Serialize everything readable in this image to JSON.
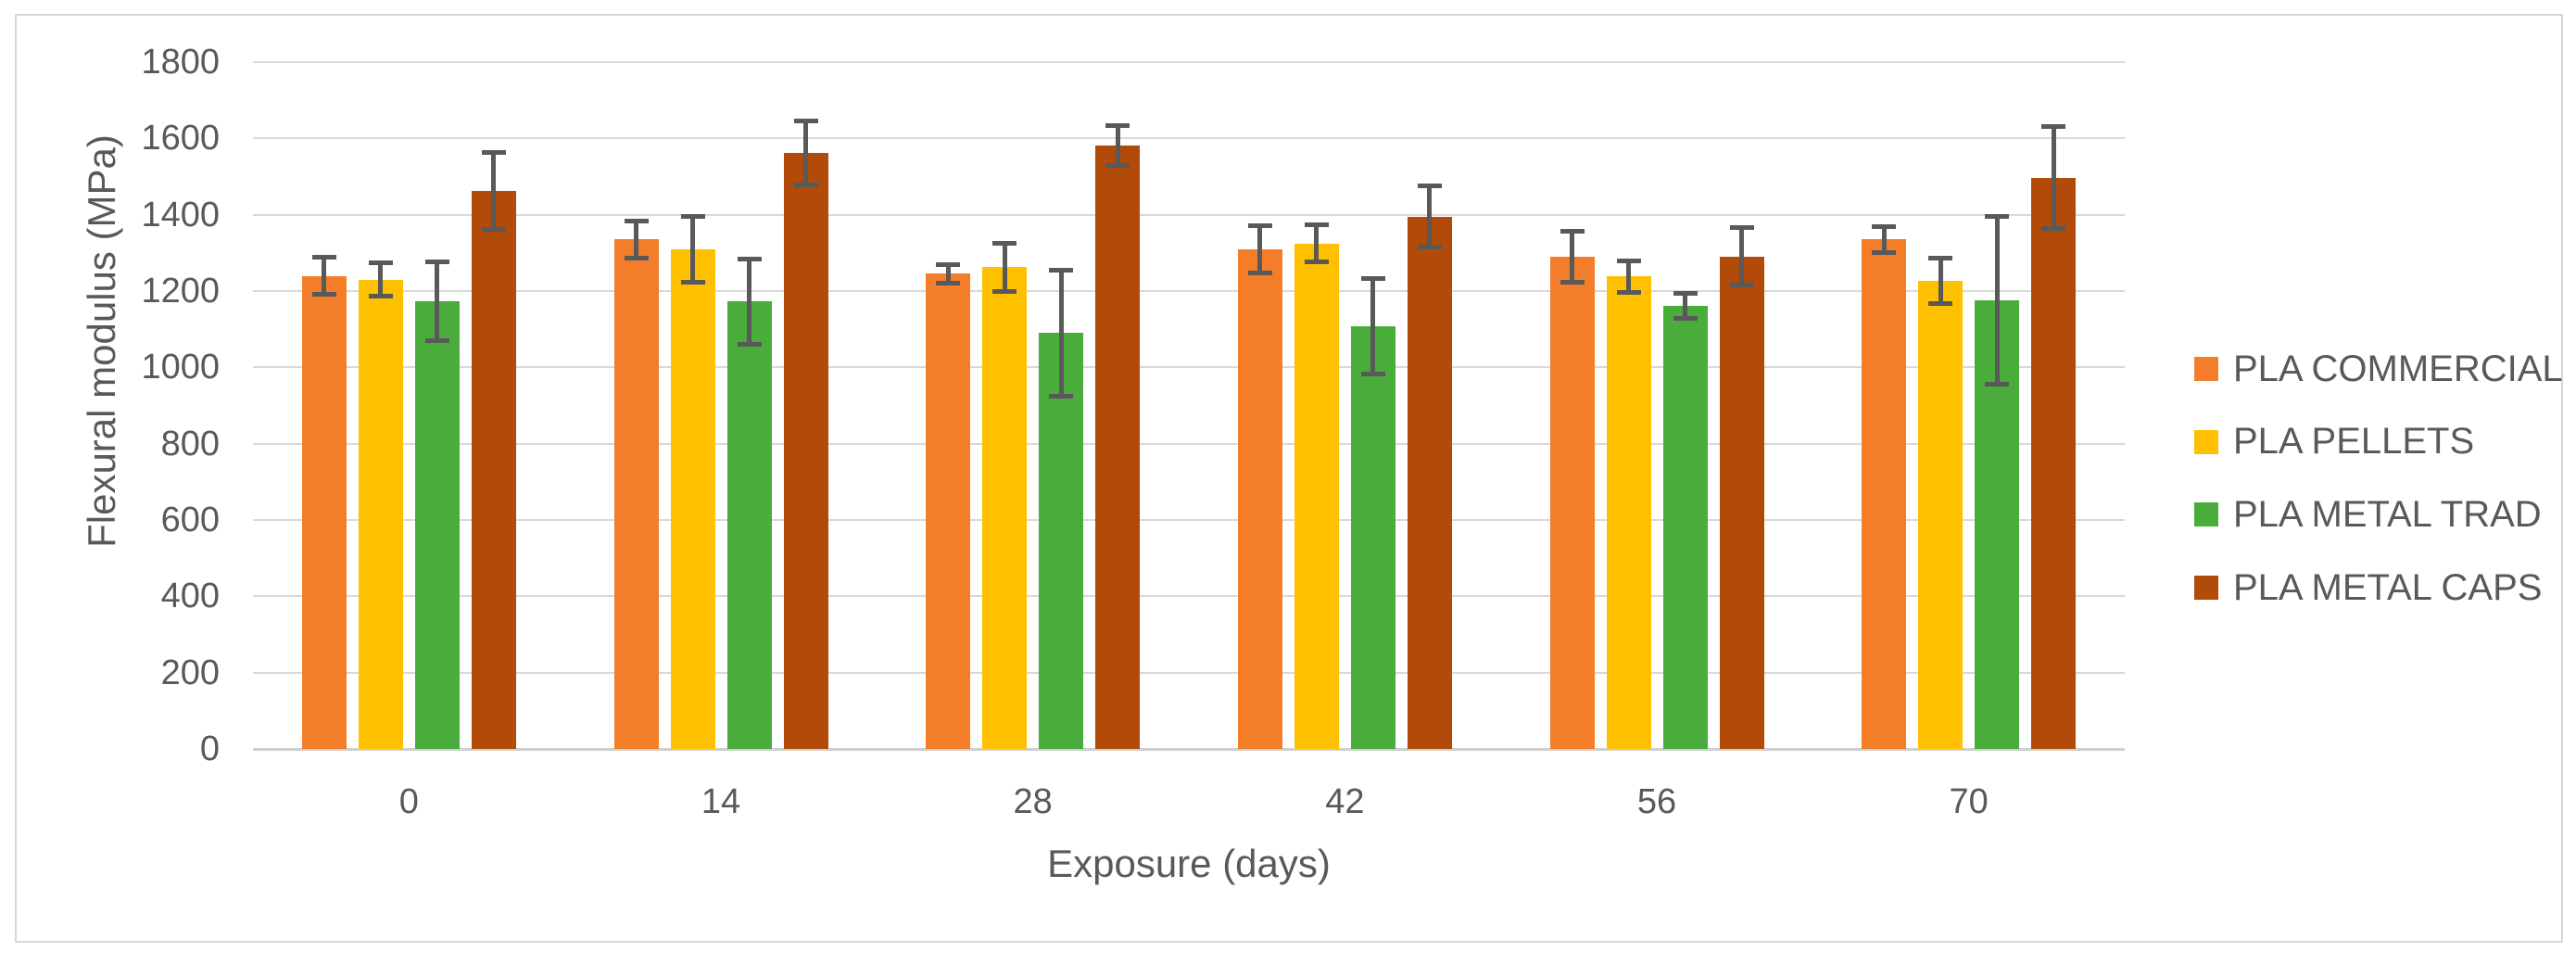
{
  "palette": {
    "text_color": "#595959",
    "grid_color": "#d9d9d9",
    "axis_line_color": "#cfcfcf",
    "error_bar_color": "#595959",
    "frame_border_color": "#d6d6d6",
    "background": "#ffffff"
  },
  "chart_data": {
    "type": "bar",
    "title": "",
    "xlabel": "Exposure (days)",
    "ylabel": "Flexural modulus (MPa)",
    "categories": [
      "0",
      "14",
      "28",
      "42",
      "56",
      "70"
    ],
    "series": [
      {
        "name": "PLA COMMERCIAL",
        "color": "#f47d29",
        "values": [
          1240,
          1335,
          1245,
          1310,
          1290,
          1335
        ],
        "errors": [
          48,
          48,
          25,
          62,
          67,
          35
        ]
      },
      {
        "name": "PLA PELLETS",
        "color": "#ffc000",
        "values": [
          1230,
          1310,
          1262,
          1325,
          1238,
          1226
        ],
        "errors": [
          44,
          86,
          62,
          48,
          42,
          60
        ]
      },
      {
        "name": "PLA METAL TRAD",
        "color": "#49ac3b",
        "values": [
          1173,
          1173,
          1090,
          1107,
          1161,
          1175
        ],
        "errors": [
          104,
          112,
          165,
          125,
          32,
          220
        ]
      },
      {
        "name": "PLA METAL CAPS",
        "color": "#b24b09",
        "values": [
          1462,
          1561,
          1581,
          1395,
          1291,
          1497
        ],
        "errors": [
          100,
          84,
          52,
          80,
          75,
          133
        ]
      }
    ],
    "ylim": [
      0,
      1800
    ],
    "ytick_step": 200,
    "grid": true,
    "error_bars": true,
    "legend_position": "right"
  }
}
